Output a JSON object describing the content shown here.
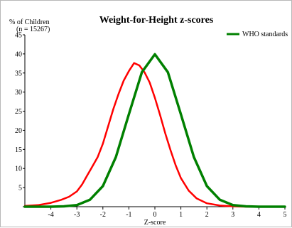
{
  "chart_data": {
    "type": "line",
    "title": "Weight-for-Height z-scores",
    "ylabel": "% of Children",
    "sample_note": "(n = 15267)",
    "xlabel": "Z-score",
    "xlim": [
      -5,
      5
    ],
    "ylim": [
      0,
      45
    ],
    "x_ticks": [
      -4,
      -3,
      -2,
      -1,
      0,
      1,
      2,
      3,
      4,
      5
    ],
    "y_ticks": [
      0,
      5,
      10,
      15,
      20,
      25,
      30,
      35,
      40,
      45
    ],
    "grid": false,
    "legend_position": "top-right",
    "series": [
      {
        "name": "",
        "color": "#ff0000",
        "x": [
          -5.0,
          -4.5,
          -4.0,
          -3.6,
          -3.3,
          -3.0,
          -2.8,
          -2.6,
          -2.4,
          -2.2,
          -2.0,
          -1.8,
          -1.6,
          -1.4,
          -1.2,
          -1.0,
          -0.8,
          -0.6,
          -0.4,
          -0.2,
          0.0,
          0.2,
          0.4,
          0.6,
          0.8,
          1.0,
          1.3,
          1.6,
          2.0,
          2.5,
          3.0,
          3.5,
          4.0,
          4.5,
          5.0
        ],
        "values": [
          0.2,
          0.4,
          1.0,
          1.8,
          2.6,
          4.0,
          5.8,
          8.2,
          10.6,
          13.0,
          16.5,
          21.0,
          25.5,
          29.5,
          33.0,
          35.5,
          37.6,
          37.0,
          35.2,
          32.5,
          28.5,
          24.0,
          19.2,
          14.8,
          10.8,
          7.5,
          4.2,
          2.2,
          0.9,
          0.3,
          0.1,
          0.0,
          0.0,
          0.0,
          0.0
        ]
      },
      {
        "name": "WHO standards",
        "color": "#008000",
        "x": [
          -5.0,
          -4.5,
          -4.0,
          -3.5,
          -3.0,
          -2.5,
          -2.0,
          -1.5,
          -1.0,
          -0.5,
          0.0,
          0.5,
          1.0,
          1.5,
          2.0,
          2.5,
          3.0,
          3.5,
          4.0,
          4.5,
          5.0
        ],
        "values": [
          0.0,
          0.0,
          0.0,
          0.1,
          0.4,
          1.8,
          5.4,
          13.0,
          24.2,
          35.2,
          39.9,
          35.2,
          24.2,
          13.0,
          5.4,
          1.8,
          0.4,
          0.1,
          0.0,
          0.0,
          0.0
        ]
      }
    ]
  }
}
